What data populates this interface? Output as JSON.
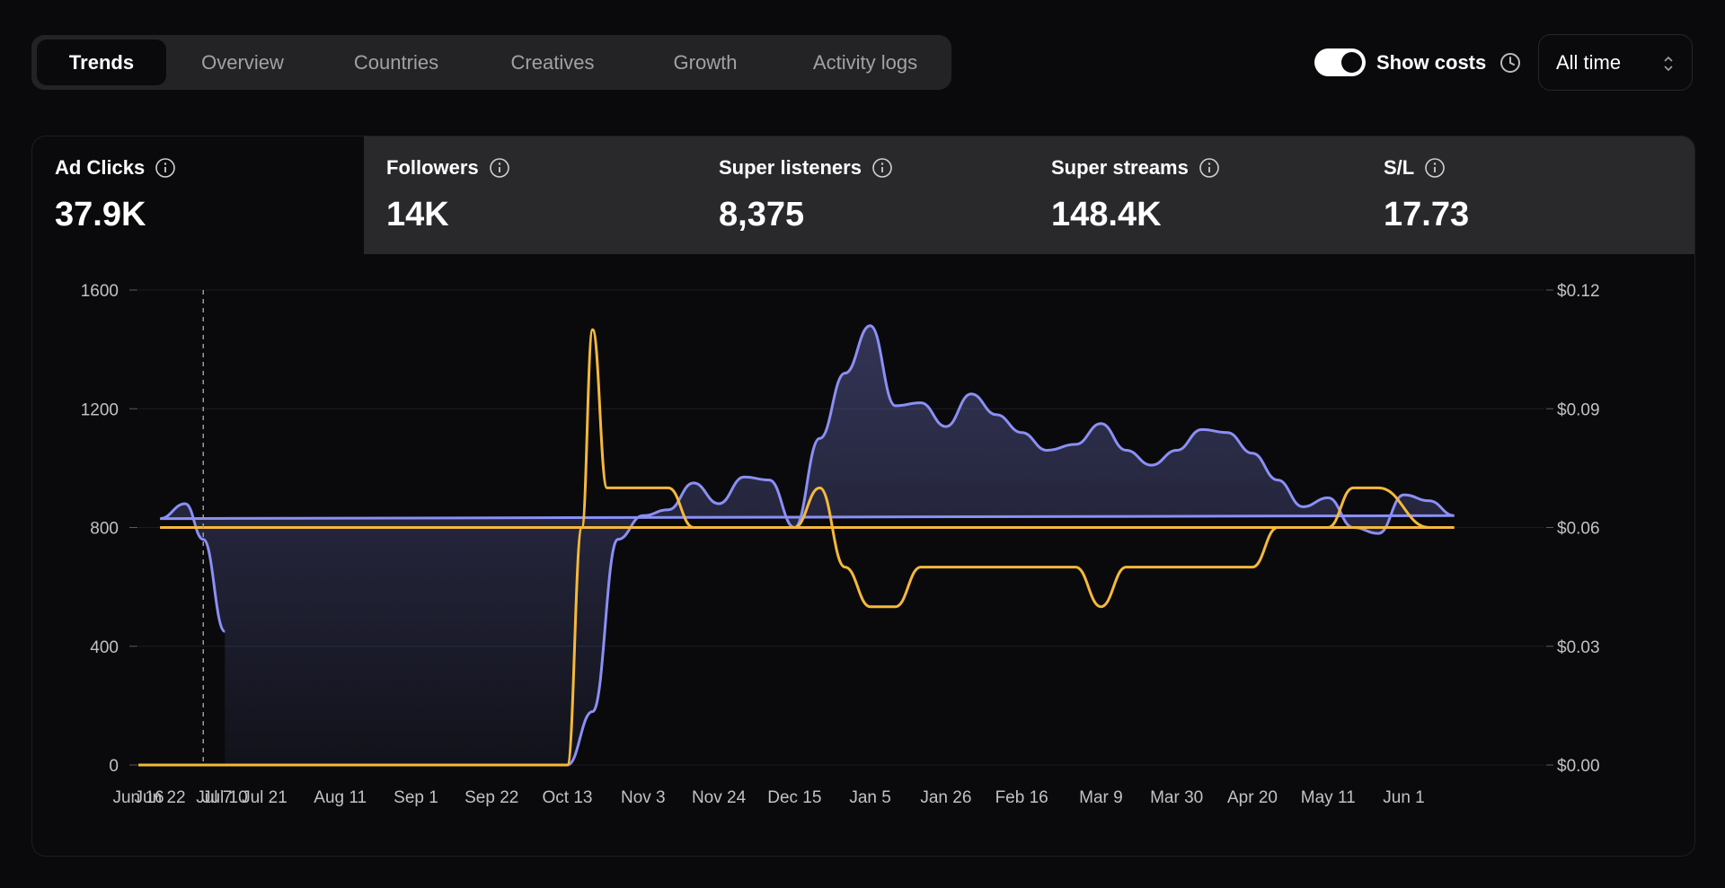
{
  "tabs": [
    {
      "label": "Trends",
      "active": true
    },
    {
      "label": "Overview",
      "active": false
    },
    {
      "label": "Countries",
      "active": false
    },
    {
      "label": "Creatives",
      "active": false
    },
    {
      "label": "Growth",
      "active": false
    },
    {
      "label": "Activity logs",
      "active": false
    }
  ],
  "controls": {
    "show_costs_label": "Show costs",
    "show_costs_on": true,
    "date_range": "All time",
    "icons": [
      "clock-icon",
      "chevron-updown-icon"
    ]
  },
  "metrics": [
    {
      "label": "Ad Clicks",
      "value": "37.9K",
      "active": true
    },
    {
      "label": "Followers",
      "value": "14K",
      "active": false
    },
    {
      "label": "Super listeners",
      "value": "8,375",
      "active": false
    },
    {
      "label": "Super streams",
      "value": "148.4K",
      "active": false
    },
    {
      "label": "S/L",
      "value": "17.73",
      "active": false
    }
  ],
  "colors": {
    "clicks_series": "#8b8ff5",
    "cost_series": "#f5b93a",
    "background": "#0a0a0c",
    "metrics_bar": "#29292c"
  },
  "chart_data": {
    "type": "area",
    "title": "",
    "xlabel": "",
    "ylabel": "",
    "x_tick_labels": [
      "Jun 16",
      "Jul 7",
      "Jul 21",
      "Aug 11",
      "Sep 1",
      "Sep 22",
      "Oct 13",
      "Nov 3",
      "Nov 24",
      "Dec 15",
      "Jan 5",
      "Jan 26",
      "Feb 16",
      "Mar 9",
      "Mar 30",
      "Apr 20",
      "May 11",
      "Jun 1",
      "Jun 22",
      "Jul 10"
    ],
    "y_left_ticks": [
      "0",
      "400",
      "800",
      "1200",
      "1600"
    ],
    "y_left_range": [
      0,
      1600
    ],
    "y_right_ticks": [
      "$0.00",
      "$0.03",
      "$0.06",
      "$0.09",
      "$0.12"
    ],
    "y_right_range": [
      0,
      0.12
    ],
    "grid": true,
    "marker_line_date": "Jul 4",
    "series": [
      {
        "axis": "left",
        "x": [
          "Jun 16",
          "Oct 13",
          "Oct 20",
          "Oct 27",
          "Nov 3",
          "Nov 10",
          "Nov 17",
          "Nov 24",
          "Dec 1",
          "Dec 8",
          "Dec 15",
          "Dec 22",
          "Dec 29",
          "Jan 5",
          "Jan 12",
          "Jan 19",
          "Jan 26",
          "Feb 2",
          "Feb 9",
          "Feb 16",
          "Feb 23",
          "Mar 2",
          "Mar 9",
          "Mar 16",
          "Mar 23",
          "Mar 30",
          "Apr 6",
          "Apr 13",
          "Apr 20",
          "Apr 27",
          "May 4",
          "May 11",
          "May 18",
          "May 25",
          "Jun 1",
          "Jun 8",
          "Jun 15",
          "Jun 22",
          "Jun 29",
          "Jul 4",
          "Jul 10"
        ],
        "values": [
          0,
          0,
          180,
          760,
          840,
          860,
          950,
          880,
          970,
          960,
          800,
          1100,
          1320,
          1480,
          1210,
          1220,
          1140,
          1250,
          1180,
          1120,
          1060,
          1080,
          1150,
          1060,
          1010,
          1060,
          1130,
          1120,
          1050,
          960,
          870,
          900,
          800,
          780,
          910,
          890,
          840,
          830,
          880,
          760,
          450
        ]
      },
      {
        "axis": "right",
        "x": [
          "Jun 16",
          "Oct 13",
          "Oct 17",
          "Oct 20",
          "Oct 24",
          "Oct 27",
          "Nov 10",
          "Nov 17",
          "Nov 24",
          "Dec 8",
          "Dec 15",
          "Dec 22",
          "Dec 29",
          "Jan 5",
          "Jan 12",
          "Jan 19",
          "Jan 26",
          "Feb 2",
          "Feb 23",
          "Mar 2",
          "Mar 9",
          "Mar 16",
          "Mar 23",
          "Apr 13",
          "Apr 20",
          "Apr 27",
          "May 4",
          "May 11",
          "May 18",
          "May 25",
          "Jun 8",
          "Jun 15",
          "Jun 22",
          "Jul 10"
        ],
        "values": [
          0,
          0,
          0.06,
          0.11,
          0.07,
          0.07,
          0.07,
          0.06,
          0.06,
          0.06,
          0.06,
          0.07,
          0.05,
          0.04,
          0.04,
          0.05,
          0.05,
          0.05,
          0.05,
          0.05,
          0.04,
          0.05,
          0.05,
          0.05,
          0.05,
          0.06,
          0.06,
          0.06,
          0.07,
          0.07,
          0.06,
          0.06,
          0.06,
          0.06
        ]
      }
    ]
  }
}
